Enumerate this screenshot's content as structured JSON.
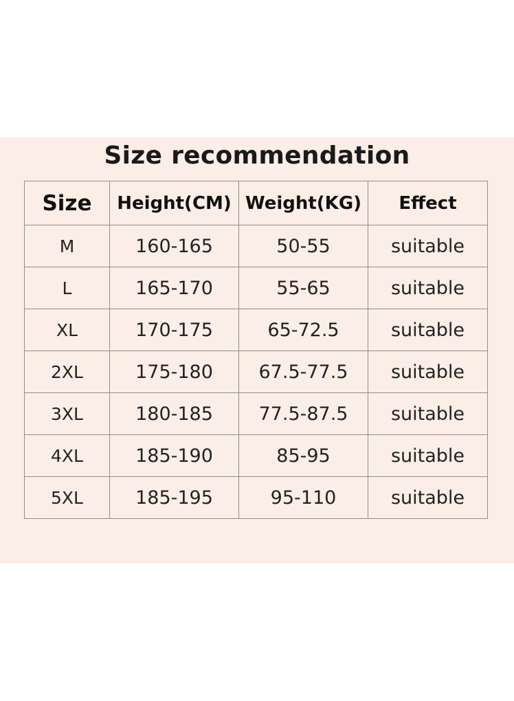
{
  "title": "Size recommendation",
  "table": {
    "headers": [
      "Size",
      "Height(CM)",
      "Weight(KG)",
      "Effect"
    ],
    "rows": [
      [
        "M",
        "160-165",
        "50-55",
        "suitable"
      ],
      [
        "L",
        "165-170",
        "55-65",
        "suitable"
      ],
      [
        "XL",
        "170-175",
        "65-72.5",
        "suitable"
      ],
      [
        "2XL",
        "175-180",
        "67.5-77.5",
        "suitable"
      ],
      [
        "3XL",
        "180-185",
        "77.5-87.5",
        "suitable"
      ],
      [
        "4XL",
        "185-190",
        "85-95",
        "suitable"
      ],
      [
        "5XL",
        "185-195",
        "95-110",
        "suitable"
      ]
    ]
  },
  "colors": {
    "panel_background": "#fbeee6",
    "grid_line": "#8d8d8d",
    "text": "#222222"
  }
}
